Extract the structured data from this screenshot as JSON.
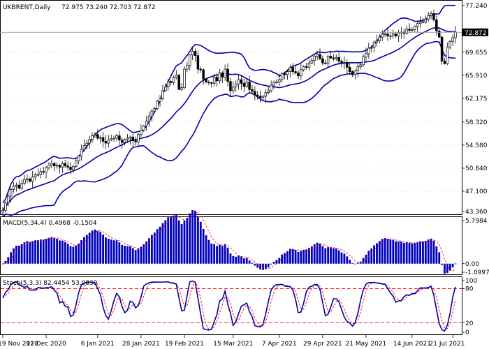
{
  "header": {
    "symbol": "UKBRENT,Daily",
    "ohlc": "72.975 73.240 72.703 72.872"
  },
  "colors": {
    "candle": "#000000",
    "bollinger": "#0000a8",
    "macd_hist": "#0000c0",
    "macd_signal": "#ff0000",
    "stoch_main": "#0000a8",
    "stoch_signal": "#ff0000",
    "grid": "#c8c8c8",
    "price_tag_bg": "#000000"
  },
  "chart_data": [
    {
      "type": "candlestick",
      "name": "price",
      "ylim": [
        43.36,
        78.0
      ],
      "y_ticks": [
        "77.240",
        "69.655",
        "65.910",
        "62.175",
        "58.320",
        "54.580",
        "50.840",
        "47.100",
        "43.360"
      ],
      "y_tick_values": [
        77.24,
        69.655,
        65.91,
        62.175,
        58.32,
        54.58,
        50.84,
        47.1,
        43.36
      ],
      "current_price_label": "72.872",
      "current_price": 72.872,
      "x_ticks": [
        "19 Nov 2020",
        "11 Dec 2020",
        "6 Jan 2021",
        "28 Jan 2021",
        "19 Feb 2021",
        "15 Mar 2021",
        "7 Apr 2021",
        "29 Apr 2021",
        "21 May 2021",
        "14 Jun 2021",
        "21 Jul 2021"
      ],
      "x_tick_bars": [
        0,
        16,
        35,
        51,
        67,
        85,
        102,
        118,
        134,
        151,
        166
      ],
      "closes": [
        44.0,
        45.2,
        46.3,
        47.4,
        47.9,
        48.1,
        47.6,
        48.4,
        49.0,
        49.1,
        48.7,
        49.4,
        49.8,
        49.8,
        50.3,
        50.2,
        50.9,
        51.3,
        51.6,
        51.2,
        51.3,
        51.0,
        51.6,
        51.2,
        51.0,
        50.6,
        51.1,
        52.0,
        52.8,
        53.9,
        54.5,
        54.9,
        55.5,
        56.1,
        56.3,
        55.7,
        55.8,
        55.2,
        54.9,
        55.4,
        55.6,
        55.7,
        56.1,
        55.4,
        55.0,
        55.5,
        55.7,
        55.9,
        55.3,
        55.1,
        56.3,
        57.0,
        57.7,
        58.5,
        59.3,
        60.1,
        60.5,
        61.7,
        62.1,
        63.4,
        64.0,
        64.9,
        64.7,
        65.5,
        65.9,
        63.6,
        63.9,
        66.9,
        67.5,
        69.2,
        69.8,
        69.1,
        66.9,
        66.8,
        65.3,
        64.8,
        64.7,
        64.6,
        65.6,
        65.0,
        66.3,
        65.6,
        66.9,
        64.9,
        63.4,
        64.0,
        64.5,
        65.2,
        64.6,
        64.1,
        64.8,
        63.6,
        63.3,
        62.7,
        62.5,
        62.3,
        62.5,
        63.1,
        63.4,
        64.3,
        64.7,
        64.8,
        65.2,
        66.2,
        66.0,
        66.5,
        67.2,
        66.5,
        66.3,
        65.8,
        66.8,
        67.3,
        67.2,
        67.9,
        68.3,
        69.0,
        69.3,
        68.6,
        67.9,
        67.8,
        69.0,
        68.7,
        68.6,
        68.8,
        68.2,
        67.9,
        68.0,
        67.2,
        66.5,
        66.0,
        66.6,
        67.3,
        67.6,
        68.9,
        69.4,
        70.3,
        70.4,
        71.3,
        71.5,
        72.1,
        72.6,
        72.6,
        72.3,
        72.3,
        72.6,
        72.3,
        72.8,
        72.9,
        72.7,
        73.4,
        73.2,
        73.3,
        73.8,
        74.3,
        74.6,
        74.5,
        75.0,
        75.6,
        75.9,
        74.9,
        73.1,
        72.1,
        68.2,
        67.8,
        70.5,
        71.4,
        72.0,
        72.9
      ]
    },
    {
      "type": "histogram",
      "name": "MACD",
      "label": "MACD(5,34,4) 0.4968 -0.1504",
      "ylim": [
        -1.35,
        5.9
      ],
      "y_ticks": [
        "5.7984",
        "0.00",
        "-1.0997"
      ],
      "y_tick_values": [
        5.7984,
        0.0,
        -1.0997
      ]
    },
    {
      "type": "line",
      "name": "Stoch",
      "label": "Stoch(5,3,3) 82.4454 53.0839",
      "ylim": [
        0,
        100
      ],
      "y_ticks": [
        "100",
        "80",
        "20",
        "0"
      ],
      "y_tick_values": [
        100,
        80,
        20,
        0
      ],
      "levels": [
        20,
        80
      ]
    }
  ]
}
